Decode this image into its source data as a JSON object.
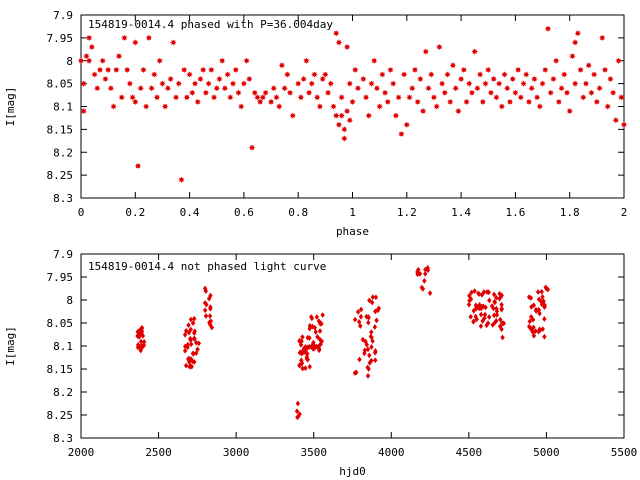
{
  "chart_data": [
    {
      "type": "scatter",
      "title": "154819-0014.4 phased with P=36.004day",
      "xlabel": "phase",
      "ylabel": "I[mag]",
      "xlim": [
        0,
        2
      ],
      "ylim": [
        7.9,
        8.3
      ],
      "y_inverted": true,
      "x_ticks": [
        "0",
        "0.2",
        "0.4",
        "0.6",
        "0.8",
        "1",
        "1.2",
        "1.4",
        "1.6",
        "1.8",
        "2"
      ],
      "y_ticks": [
        "7.9",
        "7.95",
        "8",
        "8.05",
        "8.1",
        "8.15",
        "8.2",
        "8.25",
        "8.3"
      ],
      "marker": "star",
      "color": "#e00000",
      "points": [
        [
          0.0,
          8.0
        ],
        [
          0.01,
          8.05
        ],
        [
          0.01,
          8.11
        ],
        [
          0.02,
          7.99
        ],
        [
          0.03,
          7.95
        ],
        [
          0.03,
          8.0
        ],
        [
          0.04,
          7.97
        ],
        [
          0.05,
          8.03
        ],
        [
          0.06,
          8.06
        ],
        [
          0.07,
          8.02
        ],
        [
          0.08,
          8.0
        ],
        [
          0.09,
          8.04
        ],
        [
          0.1,
          8.02
        ],
        [
          0.11,
          8.06
        ],
        [
          0.12,
          8.1
        ],
        [
          0.13,
          8.02
        ],
        [
          0.14,
          7.99
        ],
        [
          0.15,
          8.08
        ],
        [
          0.16,
          7.95
        ],
        [
          0.17,
          8.02
        ],
        [
          0.18,
          8.05
        ],
        [
          0.19,
          8.08
        ],
        [
          0.2,
          7.96
        ],
        [
          0.2,
          8.09
        ],
        [
          0.21,
          8.23
        ],
        [
          0.22,
          8.06
        ],
        [
          0.23,
          8.02
        ],
        [
          0.24,
          8.1
        ],
        [
          0.25,
          7.95
        ],
        [
          0.26,
          8.06
        ],
        [
          0.27,
          8.03
        ],
        [
          0.28,
          8.08
        ],
        [
          0.29,
          8.0
        ],
        [
          0.3,
          8.05
        ],
        [
          0.31,
          8.1
        ],
        [
          0.32,
          8.06
        ],
        [
          0.33,
          8.04
        ],
        [
          0.34,
          7.96
        ],
        [
          0.35,
          8.08
        ],
        [
          0.36,
          8.05
        ],
        [
          0.37,
          8.26
        ],
        [
          0.38,
          8.02
        ],
        [
          0.39,
          8.08
        ],
        [
          0.4,
          8.03
        ],
        [
          0.41,
          8.07
        ],
        [
          0.42,
          8.05
        ],
        [
          0.43,
          8.09
        ],
        [
          0.44,
          8.04
        ],
        [
          0.45,
          8.02
        ],
        [
          0.46,
          8.07
        ],
        [
          0.47,
          8.05
        ],
        [
          0.48,
          8.02
        ],
        [
          0.49,
          8.08
        ],
        [
          0.5,
          8.06
        ],
        [
          0.51,
          8.04
        ],
        [
          0.52,
          8.0
        ],
        [
          0.53,
          8.06
        ],
        [
          0.54,
          8.03
        ],
        [
          0.55,
          8.08
        ],
        [
          0.56,
          8.05
        ],
        [
          0.57,
          8.02
        ],
        [
          0.58,
          8.07
        ],
        [
          0.59,
          8.1
        ],
        [
          0.6,
          8.05
        ],
        [
          0.61,
          8.0
        ],
        [
          0.62,
          8.04
        ],
        [
          0.63,
          8.19
        ],
        [
          0.64,
          8.07
        ],
        [
          0.65,
          8.08
        ],
        [
          0.66,
          8.09
        ],
        [
          0.67,
          8.08
        ],
        [
          0.68,
          8.07
        ],
        [
          0.7,
          8.09
        ],
        [
          0.71,
          8.06
        ],
        [
          0.72,
          8.08
        ],
        [
          0.73,
          8.1
        ],
        [
          0.74,
          8.01
        ],
        [
          0.75,
          8.06
        ],
        [
          0.76,
          8.03
        ],
        [
          0.77,
          8.07
        ],
        [
          0.78,
          8.12
        ],
        [
          0.8,
          8.05
        ],
        [
          0.81,
          8.08
        ],
        [
          0.82,
          8.04
        ],
        [
          0.83,
          8.0
        ],
        [
          0.84,
          8.07
        ],
        [
          0.85,
          8.05
        ],
        [
          0.86,
          8.03
        ],
        [
          0.87,
          8.08
        ],
        [
          0.88,
          8.1
        ],
        [
          0.89,
          8.04
        ],
        [
          0.9,
          8.03
        ],
        [
          0.91,
          8.07
        ],
        [
          0.92,
          8.05
        ],
        [
          0.93,
          8.1
        ],
        [
          0.94,
          7.94
        ],
        [
          0.94,
          8.12
        ],
        [
          0.95,
          7.96
        ],
        [
          0.95,
          8.14
        ],
        [
          0.96,
          8.08
        ],
        [
          0.96,
          8.12
        ],
        [
          0.97,
          8.15
        ],
        [
          0.97,
          8.17
        ],
        [
          0.98,
          8.11
        ],
        [
          0.98,
          7.97
        ],
        [
          0.99,
          8.13
        ],
        [
          0.99,
          8.05
        ],
        [
          1.0,
          8.09
        ],
        [
          1.01,
          8.02
        ],
        [
          1.02,
          8.06
        ],
        [
          1.04,
          8.04
        ],
        [
          1.05,
          8.08
        ],
        [
          1.06,
          8.12
        ],
        [
          1.07,
          8.05
        ],
        [
          1.08,
          8.0
        ],
        [
          1.09,
          8.06
        ],
        [
          1.1,
          8.1
        ],
        [
          1.11,
          8.03
        ],
        [
          1.12,
          8.07
        ],
        [
          1.13,
          8.09
        ],
        [
          1.14,
          8.02
        ],
        [
          1.15,
          8.05
        ],
        [
          1.16,
          8.12
        ],
        [
          1.17,
          8.08
        ],
        [
          1.18,
          8.16
        ],
        [
          1.19,
          8.03
        ],
        [
          1.2,
          8.14
        ],
        [
          1.21,
          8.08
        ],
        [
          1.22,
          8.06
        ],
        [
          1.23,
          8.02
        ],
        [
          1.24,
          8.09
        ],
        [
          1.25,
          8.04
        ],
        [
          1.26,
          8.11
        ],
        [
          1.27,
          7.98
        ],
        [
          1.28,
          8.06
        ],
        [
          1.29,
          8.03
        ],
        [
          1.3,
          8.08
        ],
        [
          1.31,
          8.1
        ],
        [
          1.32,
          7.97
        ],
        [
          1.33,
          8.05
        ],
        [
          1.34,
          8.07
        ],
        [
          1.35,
          8.03
        ],
        [
          1.36,
          8.09
        ],
        [
          1.37,
          8.01
        ],
        [
          1.38,
          8.06
        ],
        [
          1.39,
          8.11
        ],
        [
          1.4,
          8.04
        ],
        [
          1.41,
          8.02
        ],
        [
          1.42,
          8.09
        ],
        [
          1.43,
          8.05
        ],
        [
          1.44,
          8.07
        ],
        [
          1.45,
          7.98
        ],
        [
          1.46,
          8.06
        ],
        [
          1.47,
          8.03
        ],
        [
          1.48,
          8.09
        ],
        [
          1.49,
          8.05
        ],
        [
          1.5,
          8.02
        ],
        [
          1.51,
          8.07
        ],
        [
          1.52,
          8.04
        ],
        [
          1.53,
          8.08
        ],
        [
          1.54,
          8.05
        ],
        [
          1.55,
          8.1
        ],
        [
          1.56,
          8.03
        ],
        [
          1.57,
          8.06
        ],
        [
          1.58,
          8.09
        ],
        [
          1.59,
          8.04
        ],
        [
          1.6,
          8.07
        ],
        [
          1.61,
          8.02
        ],
        [
          1.62,
          8.08
        ],
        [
          1.63,
          8.05
        ],
        [
          1.64,
          8.03
        ],
        [
          1.65,
          8.09
        ],
        [
          1.66,
          8.06
        ],
        [
          1.67,
          8.04
        ],
        [
          1.68,
          8.08
        ],
        [
          1.69,
          8.1
        ],
        [
          1.7,
          8.05
        ],
        [
          1.71,
          8.02
        ],
        [
          1.72,
          7.93
        ],
        [
          1.73,
          8.07
        ],
        [
          1.74,
          8.04
        ],
        [
          1.75,
          8.0
        ],
        [
          1.76,
          8.09
        ],
        [
          1.77,
          8.06
        ],
        [
          1.78,
          8.03
        ],
        [
          1.79,
          8.07
        ],
        [
          1.8,
          8.11
        ],
        [
          1.81,
          7.99
        ],
        [
          1.82,
          7.96
        ],
        [
          1.82,
          8.05
        ],
        [
          1.83,
          7.94
        ],
        [
          1.84,
          8.02
        ],
        [
          1.85,
          8.08
        ],
        [
          1.86,
          8.05
        ],
        [
          1.87,
          8.01
        ],
        [
          1.88,
          8.07
        ],
        [
          1.89,
          8.03
        ],
        [
          1.9,
          8.09
        ],
        [
          1.91,
          8.06
        ],
        [
          1.92,
          7.95
        ],
        [
          1.93,
          8.02
        ],
        [
          1.94,
          8.1
        ],
        [
          1.95,
          8.04
        ],
        [
          1.96,
          8.07
        ],
        [
          1.97,
          8.13
        ],
        [
          1.98,
          8.0
        ],
        [
          1.99,
          8.08
        ],
        [
          2.0,
          8.14
        ]
      ]
    },
    {
      "type": "scatter",
      "title": "154819-0014.4 not phased light curve",
      "xlabel": "hjd0",
      "ylabel": "I[mag]",
      "xlim": [
        2000,
        5500
      ],
      "ylim": [
        7.9,
        8.3
      ],
      "y_inverted": true,
      "x_ticks": [
        "2000",
        "2500",
        "3000",
        "3500",
        "4000",
        "4500",
        "5000",
        "5500"
      ],
      "y_ticks": [
        "7.9",
        "7.95",
        "8",
        "8.05",
        "8.1",
        "8.15",
        "8.2",
        "8.25",
        "8.3"
      ],
      "marker": "diamond",
      "color": "#e00000",
      "clusters": [
        {
          "x_range": [
            2360,
            2400
          ],
          "y_range": [
            8.05,
            8.11
          ],
          "n": 22
        },
        {
          "x_range": [
            2400,
            2410
          ],
          "y_range": [
            8.09,
            8.1
          ],
          "n": 2
        },
        {
          "x_range": [
            2670,
            2760
          ],
          "y_range": [
            8.04,
            8.15
          ],
          "n": 34
        },
        {
          "x_range": [
            2780,
            2860
          ],
          "y_range": [
            7.98,
            8.06
          ],
          "n": 14
        },
        {
          "x_range": [
            3390,
            3410
          ],
          "y_range": [
            8.22,
            8.26
          ],
          "n": 3
        },
        {
          "x_range": [
            3400,
            3480
          ],
          "y_range": [
            8.08,
            8.15
          ],
          "n": 30
        },
        {
          "x_range": [
            3470,
            3560
          ],
          "y_range": [
            8.03,
            8.11
          ],
          "n": 30
        },
        {
          "x_range": [
            3760,
            3900
          ],
          "y_range": [
            8.02,
            8.16
          ],
          "n": 30
        },
        {
          "x_range": [
            3850,
            3920
          ],
          "y_range": [
            7.99,
            8.06
          ],
          "n": 12
        },
        {
          "x_range": [
            4160,
            4250
          ],
          "y_range": [
            7.93,
            7.98
          ],
          "n": 10
        },
        {
          "x_range": [
            4500,
            4720
          ],
          "y_range": [
            7.98,
            8.06
          ],
          "n": 60
        },
        {
          "x_range": [
            4700,
            4730
          ],
          "y_range": [
            8.05,
            8.09
          ],
          "n": 5
        },
        {
          "x_range": [
            4880,
            5000
          ],
          "y_range": [
            7.98,
            8.08
          ],
          "n": 34
        },
        {
          "x_range": [
            4990,
            5010
          ],
          "y_range": [
            7.97,
            7.98
          ],
          "n": 2
        }
      ],
      "points_extra": [
        [
          3395,
          8.255
        ],
        [
          3398,
          8.225
        ],
        [
          3850,
          8.165
        ],
        [
          2700,
          8.145
        ],
        [
          2800,
          7.975
        ],
        [
          4235,
          7.93
        ],
        [
          4250,
          7.985
        ],
        [
          5000,
          7.975
        ]
      ]
    }
  ]
}
